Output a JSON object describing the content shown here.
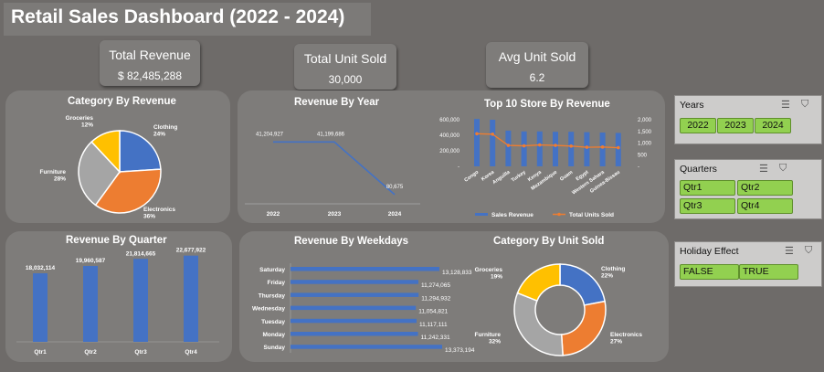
{
  "title": "Retail Sales Dashboard (2022 - 2024)",
  "kpis": [
    {
      "label": "Total Revenue",
      "value": "$ 82,485,288"
    },
    {
      "label": "Total Unit Sold",
      "value": "30,000"
    },
    {
      "label": "Avg Unit Sold",
      "value": "6.2"
    }
  ],
  "panels": {
    "category_revenue": "Category By Revenue",
    "revenue_year": "Revenue By Year",
    "top10": "Top 10 Store By Revenue",
    "revenue_quarter": "Revenue By Quarter",
    "revenue_weekdays": "Revenue By Weekdays",
    "category_units": "Category By Unit Sold"
  },
  "slicers": {
    "years": {
      "header": "Years",
      "items": [
        "2022",
        "2023",
        "2024"
      ]
    },
    "quarters": {
      "header": "Quarters",
      "items": [
        "Qtr1",
        "Qtr2",
        "Qtr3",
        "Qtr4"
      ]
    },
    "holiday": {
      "header": "Holiday Effect",
      "items": [
        "FALSE",
        "TRUE"
      ]
    }
  },
  "icons": [
    "multi-select-icon",
    "clear-filter-icon"
  ],
  "colors": {
    "blue": "#4472c4",
    "orange": "#ed7d31",
    "gray": "#a5a5a5",
    "yellow": "#ffc000",
    "green": "#92d050"
  },
  "chart_data": [
    {
      "type": "pie",
      "title": "Category By Revenue",
      "slices": [
        {
          "name": "Clothing",
          "pct": 24,
          "label": "Clothing\n24%",
          "color": "#4472c4"
        },
        {
          "name": "Electronics",
          "pct": 36,
          "label": "Electronics\n36%",
          "color": "#ed7d31"
        },
        {
          "name": "Furniture",
          "pct": 28,
          "label": "Furniture\n28%",
          "color": "#a5a5a5"
        },
        {
          "name": "Groceries",
          "pct": 12,
          "label": "Groceries\n12%",
          "color": "#ffc000"
        }
      ]
    },
    {
      "type": "line",
      "title": "Revenue By Year",
      "categories": [
        "2022",
        "2023",
        "2024"
      ],
      "values": [
        41204927,
        41199686,
        80675
      ],
      "labels": [
        "41,204,927",
        "41,199,686",
        "80,675"
      ]
    },
    {
      "type": "bar",
      "title": "Top 10 Store By Revenue",
      "categories": [
        "Congo",
        "Korea",
        "Anguilla",
        "Turkey",
        "Kenya",
        "Mozambique",
        "Guam",
        "Egypt",
        "Western Sahara",
        "Guinea-Bissau"
      ],
      "series": [
        {
          "name": "Sales Revenue",
          "axis": "left",
          "values": [
            610000,
            600000,
            460000,
            450000,
            450000,
            445000,
            445000,
            440000,
            435000,
            430000
          ]
        },
        {
          "name": "Total Units Sold",
          "axis": "right",
          "values": [
            1400,
            1380,
            900,
            880,
            920,
            900,
            870,
            820,
            830,
            800
          ]
        }
      ],
      "left_ticks": [
        "600,000",
        "400,000",
        "200,000",
        "-"
      ],
      "right_ticks": [
        "2,000",
        "1,500",
        "1,000",
        "500",
        "-"
      ],
      "ylim_left": [
        0,
        600000
      ],
      "ylim_right": [
        0,
        2000
      ]
    },
    {
      "type": "bar",
      "title": "Revenue By Quarter",
      "categories": [
        "Qtr1",
        "Qtr2",
        "Qtr3",
        "Qtr4"
      ],
      "values": [
        18032114,
        19960587,
        21814665,
        22677922
      ],
      "labels": [
        "18,032,114",
        "19,960,587",
        "21,814,665",
        "22,677,922"
      ]
    },
    {
      "type": "bar",
      "orientation": "horizontal",
      "title": "Revenue By Weekdays",
      "categories": [
        "Saturday",
        "Friday",
        "Thursday",
        "Wednesday",
        "Tuesday",
        "Monday",
        "Sunday"
      ],
      "values": [
        13128833,
        11274065,
        11294932,
        11054821,
        11117111,
        11242331,
        13373194
      ],
      "labels": [
        "13,128,833",
        "11,274,065",
        "11,294,932",
        "11,054,821",
        "11,117,111",
        "11,242,331",
        "13,373,194"
      ]
    },
    {
      "type": "pie",
      "donut": true,
      "title": "Category By Unit Sold",
      "slices": [
        {
          "name": "Clothing",
          "pct": 22,
          "label": "Clothing\n22%",
          "color": "#4472c4"
        },
        {
          "name": "Electronics",
          "pct": 27,
          "label": "Electronics\n27%",
          "color": "#ed7d31"
        },
        {
          "name": "Furniture",
          "pct": 32,
          "label": "Furniture\n32%",
          "color": "#a5a5a5"
        },
        {
          "name": "Groceries",
          "pct": 19,
          "label": "Groceries\n19%",
          "color": "#ffc000"
        }
      ]
    }
  ]
}
